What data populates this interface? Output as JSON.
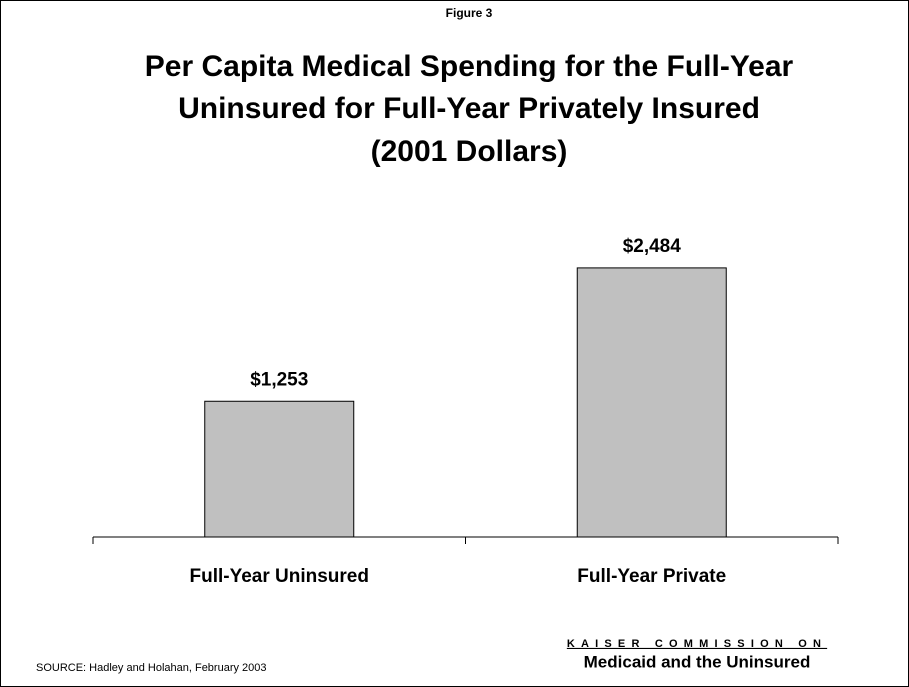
{
  "chart_data": {
    "type": "bar",
    "figure_label": "Figure 3",
    "title": [
      "Per Capita Medical Spending for the Full-Year",
      "Uninsured for Full-Year Privately Insured",
      "(2001 Dollars)"
    ],
    "categories": [
      "Full-Year Uninsured",
      "Full-Year Private"
    ],
    "values": [
      1253,
      2484
    ],
    "value_labels": [
      "$1,253",
      "$2,484"
    ],
    "color": "#c0c0c0",
    "ylim": [
      0,
      3000
    ],
    "grid": false,
    "source": "SOURCE: Hadley and Holahan, February 2003",
    "logo": {
      "line1": "KAISER COMMISSION ON",
      "line2": "Medicaid and the Uninsured"
    }
  }
}
